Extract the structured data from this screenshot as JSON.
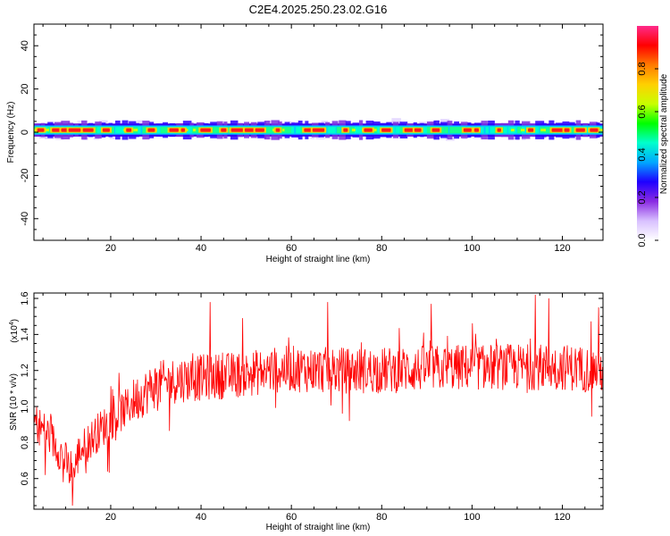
{
  "title": "C2E4.2025.250.23.02.G16",
  "chart_data": [
    {
      "type": "heatmap",
      "xlabel": "Height of straight line (km)",
      "ylabel": "Frequency (Hz)",
      "xlim": [
        3,
        129
      ],
      "ylim": [
        -50,
        50
      ],
      "xticks": [
        20,
        40,
        60,
        80,
        100,
        120
      ],
      "yticks": [
        40,
        20,
        0,
        -20,
        -40
      ],
      "colorbar": {
        "label": "Normalized spectral amplitude",
        "ticks": [
          "0.0",
          "0.2",
          "0.4",
          "0.6",
          "0.8"
        ],
        "range": [
          0,
          1
        ],
        "colors": [
          "#ffffff",
          "#d8c0ff",
          "#8a2be2",
          "#1e00ff",
          "#00a8ff",
          "#00ffcc",
          "#00ff00",
          "#c8ff00",
          "#ffd000",
          "#ff7a00",
          "#ff0000",
          "#ff2a8a"
        ]
      },
      "band_center_hz": 1.0,
      "band_core_halfwidth_hz": 1.5,
      "band_outer_halfwidth_hz": 3.0,
      "peak_heights_km": [
        4.5,
        8,
        10,
        12,
        15,
        19,
        24,
        29,
        34,
        36,
        41,
        45,
        48,
        51,
        53,
        57,
        64,
        66,
        72,
        77,
        81,
        86,
        88,
        92,
        99,
        101,
        106,
        113,
        119,
        121,
        124,
        127
      ]
    },
    {
      "type": "line",
      "xlabel": "Height of straight line (km)",
      "ylabel": "SNR (10 * v/v)",
      "yscale_label": "(x10",
      "yscale_exponent": "4",
      "xlim": [
        3,
        129
      ],
      "ylim": [
        0.43,
        1.63
      ],
      "xticks": [
        20,
        40,
        60,
        80,
        100,
        120
      ],
      "yticks": [
        0.6,
        0.8,
        1.0,
        1.2,
        1.4,
        1.6
      ],
      "ytick_labels": [
        "0.6",
        "0.8",
        "1.0",
        "1.2",
        "1.4",
        "1.6"
      ],
      "series": [
        {
          "color": "#ff0000",
          "trend": [
            [
              3,
              0.92
            ],
            [
              6,
              0.85
            ],
            [
              8,
              0.78
            ],
            [
              10,
              0.7
            ],
            [
              11.5,
              0.6
            ],
            [
              13,
              0.75
            ],
            [
              15,
              0.8
            ],
            [
              18,
              0.88
            ],
            [
              20,
              0.92
            ],
            [
              23,
              0.98
            ],
            [
              26,
              1.05
            ],
            [
              30,
              1.12
            ],
            [
              35,
              1.15
            ],
            [
              40,
              1.16
            ],
            [
              45,
              1.17
            ],
            [
              50,
              1.18
            ],
            [
              55,
              1.2
            ],
            [
              60,
              1.21
            ],
            [
              70,
              1.2
            ],
            [
              80,
              1.2
            ],
            [
              90,
              1.21
            ],
            [
              100,
              1.22
            ],
            [
              110,
              1.22
            ],
            [
              120,
              1.22
            ],
            [
              129,
              1.2
            ]
          ],
          "min_points": [
            [
              11.5,
              0.45
            ],
            [
              9.5,
              0.58
            ],
            [
              5.5,
              0.62
            ],
            [
              14.5,
              0.63
            ]
          ],
          "max_points": [
            [
              42,
              1.58
            ],
            [
              68,
              1.58
            ],
            [
              91,
              1.57
            ],
            [
              114,
              1.62
            ],
            [
              117,
              1.6
            ],
            [
              128,
              1.55
            ]
          ]
        }
      ]
    }
  ]
}
